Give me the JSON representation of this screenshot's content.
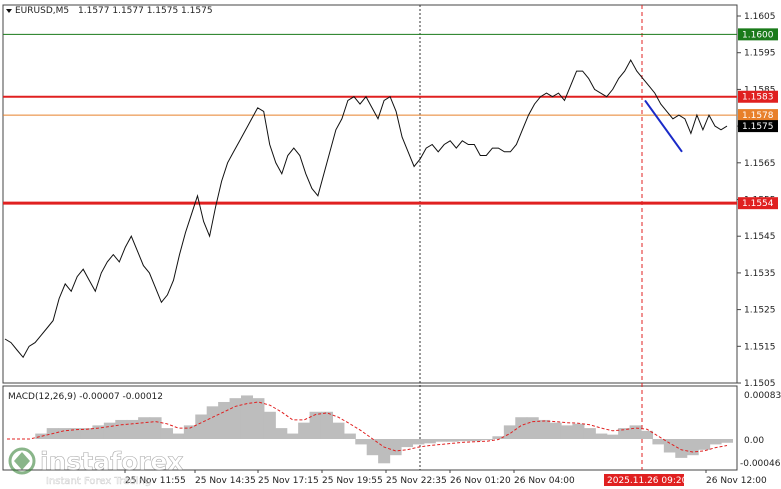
{
  "header": {
    "symbol": "EURUSD,M5",
    "ohlc": "1.1577 1.1577 1.1575 1.1575"
  },
  "macd": {
    "label": "MACD(12,26,9) -0.00007 -0.00012",
    "ticks": [
      "0.00083",
      "0.00",
      "-0.00046"
    ]
  },
  "watermark": {
    "brand": "instaforex",
    "tagline": "Instant Forex Trading"
  },
  "chart_data": {
    "type": "line",
    "ylim": [
      1.1505,
      1.1608
    ],
    "y_ticks": [
      "1.1605",
      "1.1595",
      "1.1585",
      "1.1575",
      "1.1565",
      "1.1555",
      "1.1545",
      "1.1535",
      "1.1525",
      "1.1515",
      "1.1505"
    ],
    "x_ticks": [
      "25 Nov 11:55",
      "25 Nov 14:35",
      "25 Nov 17:15",
      "25 Nov 19:55",
      "25 Nov 22:35",
      "26 Nov 01:20",
      "26 Nov 04:00",
      "26 Nov 09:20",
      "26 Nov 12:00"
    ],
    "x_highlight": "2025.11.26 09:20",
    "levels": [
      {
        "value": 1.16,
        "label": "1.1600",
        "color": "#1a7a1a"
      },
      {
        "value": 1.1583,
        "label": "1.1583",
        "color": "#e02020"
      },
      {
        "value": 1.1578,
        "label": "1.1578",
        "color": "#e8802a"
      },
      {
        "value": 1.1575,
        "label": "1.1575",
        "color": "#000000"
      },
      {
        "value": 1.1554,
        "label": "1.1554",
        "color": "#e02020"
      }
    ],
    "price": [
      1.1517,
      1.1516,
      1.1514,
      1.1512,
      1.1515,
      1.1516,
      1.1518,
      1.152,
      1.1522,
      1.1528,
      1.1532,
      1.153,
      1.1534,
      1.1536,
      1.1533,
      1.153,
      1.1535,
      1.1538,
      1.154,
      1.1538,
      1.1542,
      1.1545,
      1.1541,
      1.1537,
      1.1535,
      1.1531,
      1.1527,
      1.1529,
      1.1533,
      1.154,
      1.1546,
      1.1551,
      1.1556,
      1.1549,
      1.1545,
      1.1553,
      1.156,
      1.1565,
      1.1568,
      1.1571,
      1.1574,
      1.1577,
      1.158,
      1.1579,
      1.157,
      1.1565,
      1.1562,
      1.1567,
      1.1569,
      1.1567,
      1.1562,
      1.1558,
      1.1556,
      1.1562,
      1.1568,
      1.1574,
      1.1577,
      1.1582,
      1.1583,
      1.1581,
      1.1583,
      1.158,
      1.1577,
      1.1582,
      1.1583,
      1.1579,
      1.1572,
      1.1568,
      1.1564,
      1.1566,
      1.1569,
      1.157,
      1.1568,
      1.157,
      1.1571,
      1.1569,
      1.1571,
      1.157,
      1.157,
      1.1567,
      1.1567,
      1.1569,
      1.1569,
      1.1568,
      1.1568,
      1.157,
      1.1574,
      1.1578,
      1.1581,
      1.1583,
      1.1584,
      1.1583,
      1.1584,
      1.1582,
      1.1586,
      1.159,
      1.159,
      1.1588,
      1.1585,
      1.1584,
      1.1583,
      1.1585,
      1.1588,
      1.159,
      1.1593,
      1.159,
      1.1588,
      1.1586,
      1.1584,
      1.1581,
      1.1579,
      1.1577,
      1.1578,
      1.1577,
      1.1573,
      1.1578,
      1.1574,
      1.1578,
      1.1575,
      1.1574,
      1.1575
    ],
    "blue_line": {
      "from": 1.1582,
      "to": 1.1568
    },
    "macd_main": [
      0.0,
      0.0,
      0.0,
      0.0001,
      0.0002,
      0.0002,
      0.0002,
      0.0002,
      0.00025,
      0.0003,
      0.00035,
      0.00035,
      0.0004,
      0.0004,
      0.0002,
      0.0001,
      0.00025,
      0.00045,
      0.0006,
      0.00068,
      0.00075,
      0.0008,
      0.00075,
      0.0005,
      0.0002,
      0.0001,
      0.0003,
      0.0005,
      0.0005,
      0.0003,
      0.0001,
      -0.0001,
      -0.0003,
      -0.00045,
      -0.0003,
      -0.00015,
      -0.0001,
      -8e-05,
      -5e-05,
      -5e-05,
      -4e-05,
      -4e-05,
      -2e-05,
      5e-05,
      0.00025,
      0.0004,
      0.0004,
      0.00035,
      0.0003,
      0.00025,
      0.00028,
      0.0002,
      0.0001,
      8e-05,
      0.0002,
      0.00025,
      0.00015,
      -0.0001,
      -0.00025,
      -0.00035,
      -0.0003,
      -0.0002,
      -0.0001,
      -7e-05
    ],
    "macd_signal": [
      0.0,
      0.0,
      0.0,
      5e-05,
      0.0001,
      0.00015,
      0.00017,
      0.00018,
      0.0002,
      0.00023,
      0.00026,
      0.00028,
      0.0003,
      0.00032,
      0.00028,
      0.0002,
      0.0002,
      0.0003,
      0.0004,
      0.0005,
      0.0006,
      0.00065,
      0.00068,
      0.00062,
      0.0005,
      0.00035,
      0.00035,
      0.00045,
      0.00048,
      0.0004,
      0.00028,
      0.00015,
      0.0,
      -0.00015,
      -0.00022,
      -0.0002,
      -0.00015,
      -0.00012,
      -0.0001,
      -8e-05,
      -6e-05,
      -5e-05,
      -4e-05,
      -1e-05,
      0.0001,
      0.00025,
      0.00032,
      0.00033,
      0.00032,
      0.0003,
      0.00029,
      0.00026,
      0.0002,
      0.00015,
      0.00017,
      0.0002,
      0.00018,
      5e-05,
      -8e-05,
      -0.0002,
      -0.00024,
      -0.00022,
      -0.00016,
      -0.00012
    ]
  }
}
